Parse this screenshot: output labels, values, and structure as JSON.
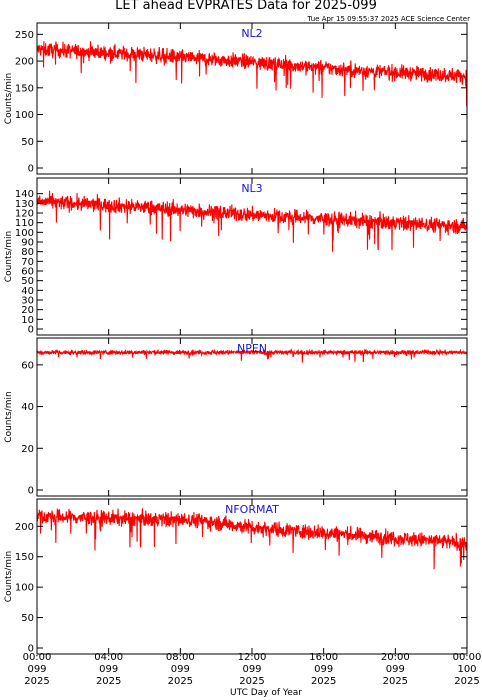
{
  "title": "LET ahead EVPRATES Data for 2025-099",
  "timestamp": "Tue Apr 15 09:55:37 2025 ACE Science Center",
  "xlabel": "UTC Day of Year",
  "colors": {
    "trace": "#ff0000",
    "series_name": "#1515e6",
    "axis": "#000000"
  },
  "chart_data": [
    {
      "type": "line",
      "series_name": "NL2",
      "ylabel": "Counts/min",
      "ylim": [
        0,
        260
      ],
      "yticks": [
        0,
        50,
        100,
        150,
        200,
        250
      ],
      "trend": [
        [
          0,
          222
        ],
        [
          6,
          212
        ],
        [
          12,
          198
        ],
        [
          18,
          182
        ],
        [
          24,
          172
        ]
      ],
      "noise": 18
    },
    {
      "type": "line",
      "series_name": "NL3",
      "ylabel": "Counts/min",
      "ylim": [
        0,
        150
      ],
      "yticks": [
        0,
        10,
        20,
        30,
        40,
        50,
        60,
        70,
        80,
        90,
        100,
        110,
        120,
        130,
        140
      ],
      "trend": [
        [
          0,
          132
        ],
        [
          6,
          126
        ],
        [
          12,
          118
        ],
        [
          18,
          112
        ],
        [
          24,
          106
        ]
      ],
      "noise": 10
    },
    {
      "type": "line",
      "series_name": "NPEN",
      "ylabel": "Counts/min",
      "ylim": [
        0,
        70
      ],
      "yticks": [
        0,
        20,
        40,
        60
      ],
      "trend": [
        [
          0,
          66
        ],
        [
          24,
          66
        ]
      ],
      "noise": 1.4
    },
    {
      "type": "line",
      "series_name": "NFORMAT",
      "ylabel": "Counts/min",
      "ylim": [
        0,
        235
      ],
      "yticks": [
        0,
        50,
        100,
        150,
        200
      ],
      "trend": [
        [
          0,
          216
        ],
        [
          9,
          210
        ],
        [
          12,
          198
        ],
        [
          18,
          185
        ],
        [
          24,
          172
        ]
      ],
      "noise": 16
    }
  ],
  "x_axis": {
    "range_hours": [
      0,
      24
    ],
    "ticks": [
      {
        "hours": 0,
        "time": "00:00",
        "day": "099",
        "year": "2025"
      },
      {
        "hours": 4,
        "time": "04:00",
        "day": "099",
        "year": "2025"
      },
      {
        "hours": 8,
        "time": "08:00",
        "day": "099",
        "year": "2025"
      },
      {
        "hours": 12,
        "time": "12:00",
        "day": "099",
        "year": "2025"
      },
      {
        "hours": 16,
        "time": "16:00",
        "day": "099",
        "year": "2025"
      },
      {
        "hours": 20,
        "time": "20:00",
        "day": "099",
        "year": "2025"
      },
      {
        "hours": 24,
        "time": "00:00",
        "day": "100",
        "year": "2025"
      }
    ]
  }
}
